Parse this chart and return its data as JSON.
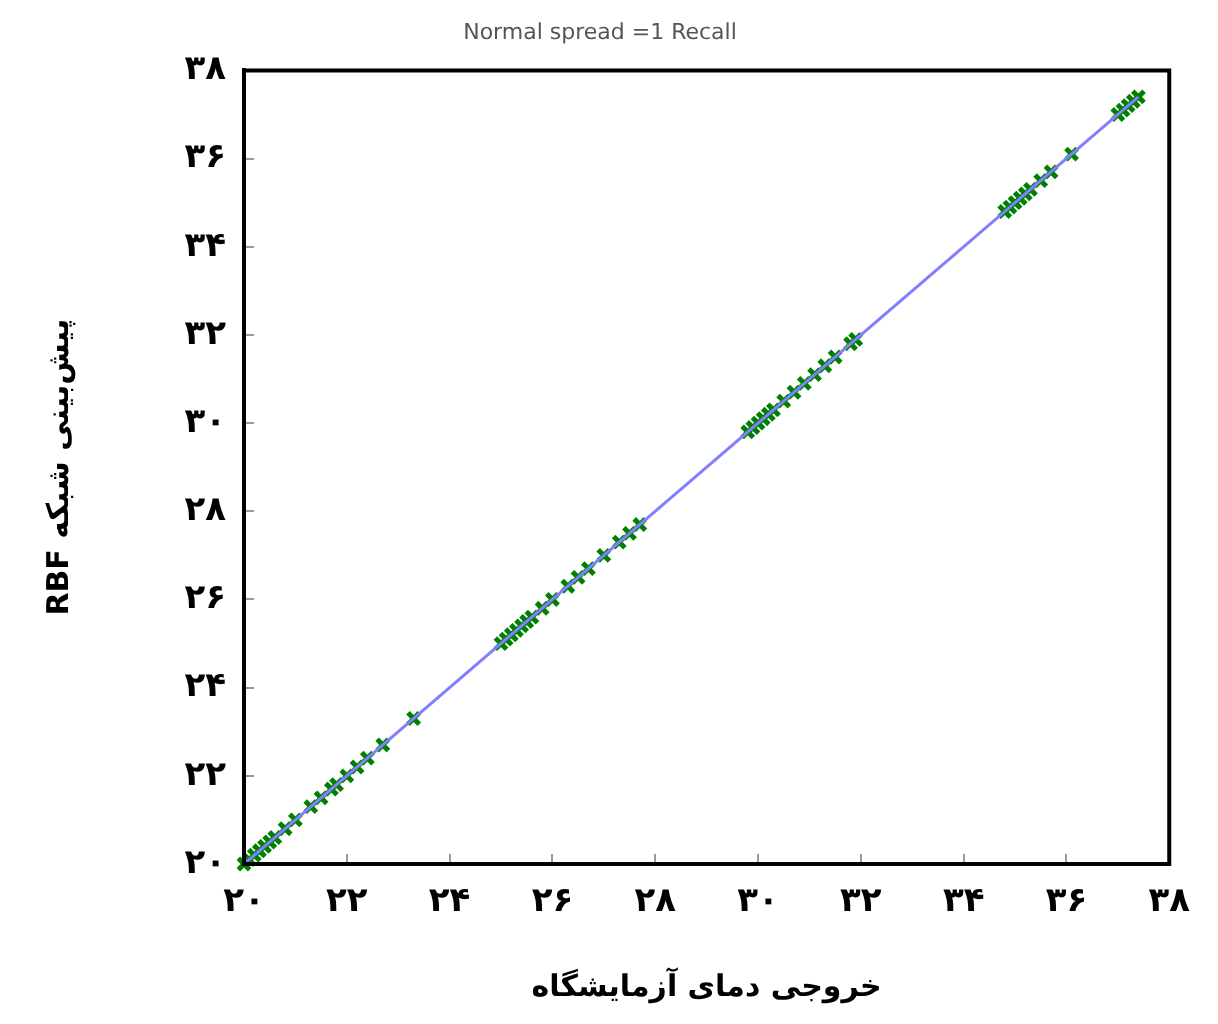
{
  "chart_data": {
    "type": "scatter",
    "title": "Normal spread =1 Recall",
    "xlabel": "خروجی دمای آزمایشگاه",
    "ylabel": "پیش‌بینی شبکه RBF",
    "xlim": [
      20,
      38
    ],
    "ylim": [
      20,
      38
    ],
    "xticks": [
      {
        "value": 20,
        "label": "۲۰"
      },
      {
        "value": 22,
        "label": "۲۲"
      },
      {
        "value": 24,
        "label": "۲۴"
      },
      {
        "value": 26,
        "label": "۲۶"
      },
      {
        "value": 28,
        "label": "۲۸"
      },
      {
        "value": 30,
        "label": "۳۰"
      },
      {
        "value": 32,
        "label": "۳۲"
      },
      {
        "value": 34,
        "label": "۳۴"
      },
      {
        "value": 36,
        "label": "۳۶"
      },
      {
        "value": 38,
        "label": "۳۸"
      }
    ],
    "yticks": [
      {
        "value": 20,
        "label": "۲۰"
      },
      {
        "value": 22,
        "label": "۲۲"
      },
      {
        "value": 24,
        "label": "۲۴"
      },
      {
        "value": 26,
        "label": "۲۶"
      },
      {
        "value": 28,
        "label": "۲۸"
      },
      {
        "value": 30,
        "label": "۳۰"
      },
      {
        "value": 32,
        "label": "۳۲"
      },
      {
        "value": 34,
        "label": "۳۴"
      },
      {
        "value": 36,
        "label": "۳۶"
      },
      {
        "value": 38,
        "label": "۳۸"
      }
    ],
    "grid": false,
    "legend": false,
    "series": [
      {
        "type": "line",
        "color": "#8080ff",
        "line_style": "solid",
        "marker": "none",
        "x": [
          20,
          37.4
        ],
        "values": [
          20,
          37.4
        ]
      },
      {
        "color": "#008000",
        "marker": "cross",
        "x": [
          20.0,
          20.1,
          20.2,
          20.3,
          20.4,
          20.5,
          20.6,
          20.8,
          21.0,
          21.3,
          21.5,
          21.7,
          21.8,
          22.0,
          22.2,
          22.4,
          22.7,
          23.3,
          25.0,
          25.1,
          25.2,
          25.3,
          25.4,
          25.5,
          25.6,
          25.8,
          26.0,
          26.3,
          26.5,
          26.7,
          27.0,
          27.3,
          27.5,
          27.7,
          29.8,
          29.9,
          30.0,
          30.1,
          30.2,
          30.3,
          30.5,
          30.7,
          30.9,
          31.1,
          31.3,
          31.5,
          31.8,
          31.9,
          34.8,
          34.9,
          35.0,
          35.1,
          35.2,
          35.3,
          35.5,
          35.7,
          36.1,
          37.0,
          37.1,
          37.2,
          37.3,
          37.4
        ],
        "values": [
          20.0,
          20.1,
          20.2,
          20.3,
          20.4,
          20.5,
          20.6,
          20.8,
          21.0,
          21.3,
          21.5,
          21.7,
          21.8,
          22.0,
          22.2,
          22.4,
          22.7,
          23.3,
          25.0,
          25.1,
          25.2,
          25.3,
          25.4,
          25.5,
          25.6,
          25.8,
          26.0,
          26.3,
          26.5,
          26.7,
          27.0,
          27.3,
          27.5,
          27.7,
          29.8,
          29.9,
          30.0,
          30.1,
          30.2,
          30.3,
          30.5,
          30.7,
          30.9,
          31.1,
          31.3,
          31.5,
          31.8,
          31.9,
          34.8,
          34.9,
          35.0,
          35.1,
          35.2,
          35.3,
          35.5,
          35.7,
          36.1,
          37.0,
          37.1,
          37.2,
          37.3,
          37.4
        ]
      }
    ]
  }
}
